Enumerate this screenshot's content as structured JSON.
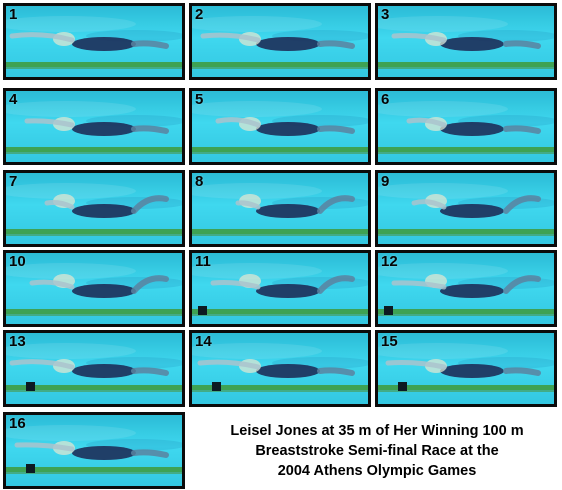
{
  "frames": [
    {
      "label": "1"
    },
    {
      "label": "2"
    },
    {
      "label": "3"
    },
    {
      "label": "4"
    },
    {
      "label": "5"
    },
    {
      "label": "6"
    },
    {
      "label": "7"
    },
    {
      "label": "8"
    },
    {
      "label": "9"
    },
    {
      "label": "10"
    },
    {
      "label": "11"
    },
    {
      "label": "12"
    },
    {
      "label": "13"
    },
    {
      "label": "14"
    },
    {
      "label": "15"
    },
    {
      "label": "16"
    }
  ],
  "caption": {
    "line1": "Leisel Jones at 35 m of Her Winning 100 m",
    "line2": "Breaststroke Semi-final Race at the",
    "line3": "2004 Athens Olympic Games"
  },
  "colors": {
    "water_top": "#1fb8d4",
    "water_mid": "#33d6ee",
    "lane_rope": "#3f9a3a",
    "swimmer": "#1c2a55",
    "frame_border": "#0b0b0b"
  }
}
